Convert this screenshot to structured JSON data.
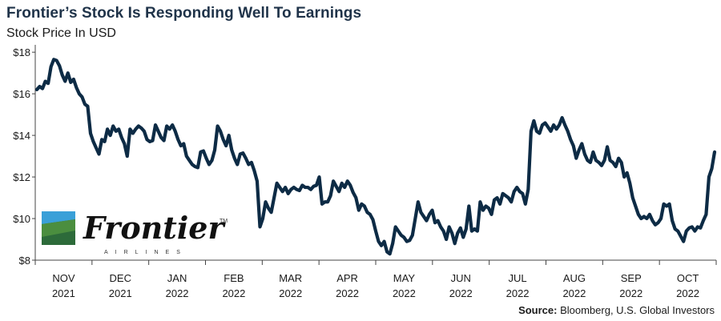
{
  "header": {
    "title": "Frontier’s Stock Is Responding Well To Earnings",
    "subtitle": "Stock Price In USD"
  },
  "logo": {
    "wordmark": "Frontier",
    "tagline": "AIRLINES",
    "trademark": "TM"
  },
  "footer": {
    "source_label": "Source:",
    "source_text": " Bloomberg, U.S. Global Investors"
  },
  "colors": {
    "line": "#0d2b45",
    "axis": "#444444",
    "grid": "#d9d9d9",
    "title": "#1f3349"
  },
  "chart_data": {
    "type": "line",
    "ylim": [
      8,
      18.2
    ],
    "y_ticks": [
      "$8",
      "$10",
      "$12",
      "$14",
      "$16",
      "$18"
    ],
    "y_tick_values": [
      8,
      10,
      12,
      14,
      16,
      18
    ],
    "x_ticks": [
      {
        "month": "NOV",
        "year": "2021"
      },
      {
        "month": "DEC",
        "year": "2021"
      },
      {
        "month": "JAN",
        "year": "2022"
      },
      {
        "month": "FEB",
        "year": "2022"
      },
      {
        "month": "MAR",
        "year": "2022"
      },
      {
        "month": "APR",
        "year": "2022"
      },
      {
        "month": "MAY",
        "year": "2022"
      },
      {
        "month": "JUN",
        "year": "2022"
      },
      {
        "month": "JUL",
        "year": "2022"
      },
      {
        "month": "AUG",
        "year": "2022"
      },
      {
        "month": "SEP",
        "year": "2022"
      },
      {
        "month": "OCT",
        "year": "2022"
      }
    ],
    "grid": false,
    "series": [
      {
        "values": [
          16.2,
          16.35,
          16.25,
          16.6,
          16.5,
          17.3,
          17.65,
          17.6,
          17.35,
          16.9,
          16.6,
          17.0,
          16.55,
          16.7,
          16.3,
          16.0,
          15.85,
          15.5,
          15.4,
          14.1,
          13.7,
          13.4,
          13.1,
          13.8,
          13.7,
          14.3,
          14.0,
          14.45,
          14.2,
          14.3,
          13.9,
          13.6,
          13.0,
          14.3,
          14.1,
          14.3,
          14.45,
          14.35,
          14.2,
          13.8,
          13.7,
          13.75,
          14.5,
          14.2,
          13.9,
          13.75,
          14.45,
          14.3,
          14.5,
          14.2,
          13.8,
          13.5,
          13.6,
          13.0,
          12.8,
          12.6,
          12.5,
          12.45,
          13.2,
          13.25,
          12.9,
          12.6,
          12.8,
          13.3,
          14.45,
          14.2,
          13.8,
          13.5,
          14.0,
          13.3,
          12.9,
          12.6,
          13.1,
          13.15,
          12.9,
          12.6,
          12.7,
          12.3,
          11.8,
          9.6,
          10.0,
          10.8,
          10.5,
          10.3,
          11.0,
          11.7,
          11.5,
          11.3,
          11.5,
          11.2,
          11.4,
          11.5,
          11.4,
          11.35,
          11.6,
          11.5,
          11.5,
          11.4,
          11.55,
          11.6,
          12.0,
          10.7,
          10.8,
          10.8,
          11.1,
          11.8,
          11.55,
          11.3,
          11.7,
          11.5,
          11.8,
          11.6,
          11.25,
          11.0,
          10.4,
          10.7,
          10.6,
          10.3,
          10.2,
          9.95,
          9.4,
          8.9,
          8.7,
          8.9,
          8.4,
          8.3,
          8.8,
          9.6,
          9.4,
          9.2,
          9.1,
          8.9,
          8.95,
          9.2,
          10.0,
          10.8,
          10.3,
          10.1,
          9.9,
          10.2,
          10.4,
          9.8,
          9.9,
          9.6,
          9.4,
          9.0,
          9.6,
          9.3,
          8.8,
          9.3,
          9.55,
          9.1,
          9.5,
          10.6,
          9.4,
          9.5,
          9.4,
          10.8,
          10.4,
          10.6,
          10.5,
          10.2,
          10.9,
          11.0,
          10.7,
          11.2,
          11.1,
          11.0,
          10.8,
          11.3,
          11.5,
          11.3,
          11.2,
          10.7,
          11.4,
          14.2,
          14.7,
          14.2,
          14.1,
          14.5,
          14.6,
          14.4,
          14.2,
          14.5,
          14.3,
          14.5,
          14.85,
          14.5,
          14.2,
          13.8,
          13.5,
          12.9,
          13.3,
          13.6,
          13.1,
          12.8,
          12.7,
          13.2,
          12.8,
          12.7,
          12.55,
          12.8,
          13.45,
          12.8,
          12.7,
          12.5,
          12.9,
          12.7,
          12.0,
          12.2,
          11.7,
          11.0,
          10.6,
          10.2,
          10.0,
          10.1,
          10.0,
          10.2,
          9.9,
          9.7,
          9.8,
          10.0,
          10.7,
          10.6,
          10.7,
          9.9,
          9.5,
          9.4,
          9.15,
          8.9,
          9.4,
          9.55,
          9.6,
          9.4,
          9.6,
          9.55,
          9.9,
          10.2,
          12.0,
          12.4,
          13.2
        ]
      }
    ]
  }
}
